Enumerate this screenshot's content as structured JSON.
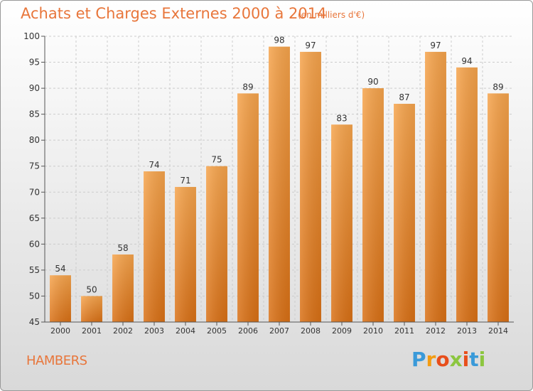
{
  "title": "Achats et Charges Externes 2000 à 2014",
  "subtitle": "(en milliers d'€)",
  "location": "HAMBERS",
  "brand": {
    "letters": [
      "P",
      "r",
      "o",
      "x",
      "i",
      "t",
      "i"
    ],
    "colors": [
      "#3a9ad9",
      "#f39c12",
      "#e84e1b",
      "#8cc63f",
      "#e84e1b",
      "#3a9ad9",
      "#8cc63f"
    ]
  },
  "colors": {
    "bar_top": "#f6a44c",
    "bar_bottom": "#d97015",
    "axis": "#555555",
    "grid": "#cccccc",
    "text": "#333333"
  },
  "chart_data": {
    "type": "bar",
    "categories": [
      "2000",
      "2001",
      "2002",
      "2003",
      "2004",
      "2005",
      "2006",
      "2007",
      "2008",
      "2009",
      "2010",
      "2011",
      "2012",
      "2013",
      "2014"
    ],
    "values": [
      54,
      50,
      58,
      74,
      71,
      75,
      89,
      98,
      97,
      83,
      90,
      87,
      97,
      94,
      89
    ],
    "ylim": [
      45,
      100
    ],
    "yticks": [
      45,
      50,
      55,
      60,
      65,
      70,
      75,
      80,
      85,
      90,
      95,
      100
    ],
    "grid": true
  }
}
